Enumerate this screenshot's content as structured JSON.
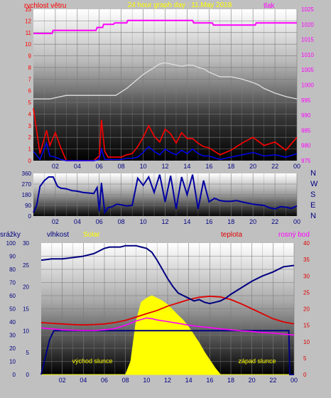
{
  "header": {
    "title": "24 hour graph day : 11.May 2018"
  },
  "colors": {
    "background": "#c0c0c0",
    "wind": "#ff0000",
    "gust": "#0000ff",
    "pressure": "#ff00ff",
    "temp_white": "#e0e0e0",
    "direction": "#0000a0",
    "humidity": "#000080",
    "solar": "#ffff00",
    "temperature": "#e00000",
    "dewpoint": "#ff00ff",
    "rain": "#000080"
  },
  "chart_data": [
    {
      "type": "line",
      "panel": "wind-pressure",
      "left_axis_label": "rychlost větru",
      "right_axis_label": "tlak",
      "x_ticks": [
        "02",
        "04",
        "06",
        "08",
        "10",
        "12",
        "14",
        "16",
        "18",
        "20",
        "22",
        "00"
      ],
      "ylim_left": [
        0,
        13
      ],
      "left_ticks": [
        "0",
        "1",
        "2",
        "3",
        "4",
        "5",
        "6",
        "7",
        "8",
        "9",
        "10",
        "11",
        "12",
        "13"
      ],
      "ylim_right": [
        975,
        1025
      ],
      "right_ticks": [
        "975",
        "980",
        "985",
        "990",
        "995",
        "1000",
        "1005",
        "1010",
        "1015",
        "1020",
        "1025"
      ],
      "series": [
        {
          "axis": "right",
          "x": [
            0,
            1.7,
            1.8,
            5.7,
            5.8,
            6.3,
            6.4,
            7.3,
            7.4,
            8.5,
            8.6,
            14.5,
            14.6,
            16.3,
            16.4,
            20.2,
            20.3,
            24
          ],
          "y": [
            1017,
            1017,
            1018,
            1018,
            1019,
            1019,
            1020,
            1020,
            1020.5,
            1020.5,
            1021.3,
            1021.3,
            1020.5,
            1020.5,
            1019.8,
            1019.8,
            1020.5,
            1020.5
          ]
        },
        {
          "axis": "left",
          "x": [
            0,
            1.5,
            3.0,
            5.0,
            6.5,
            7.5,
            8.0,
            8.5,
            9.0,
            9.5,
            10.0,
            10.5,
            11.0,
            11.5,
            12.0,
            12.5,
            13.0,
            13.5,
            14.0,
            14.5,
            15.0,
            15.5,
            16.0,
            16.5,
            17.0,
            18.0,
            19.0,
            20.0,
            20.5,
            21.0,
            22.0,
            23.0,
            24.0
          ],
          "y": [
            5.3,
            5.3,
            5.6,
            5.6,
            5.6,
            5.6,
            5.9,
            6.2,
            6.6,
            7.0,
            7.4,
            7.7,
            8.0,
            8.3,
            8.4,
            8.3,
            8.2,
            8.1,
            8.2,
            8.2,
            8.0,
            7.9,
            7.6,
            7.4,
            7.2,
            7.2,
            7.0,
            6.7,
            6.5,
            6.2,
            5.8,
            5.5,
            5.3
          ]
        },
        {
          "axis": "left",
          "x": [
            0,
            0.6,
            1.2,
            1.5,
            2.0,
            2.5,
            3.0,
            5.5,
            6.0,
            6.2,
            6.5,
            6.8,
            7.5,
            8.0,
            8.5,
            9.0,
            9.5,
            10.0,
            10.5,
            11.0,
            11.5,
            12.0,
            12.5,
            13.0,
            13.5,
            14.0,
            14.5,
            15.0,
            15.5,
            16.0,
            17.0,
            18.0,
            19.0,
            20.0,
            21.0,
            22.0,
            23.0,
            24.0
          ],
          "y": [
            4.5,
            0.6,
            2.6,
            1.3,
            2.4,
            1.1,
            0,
            0,
            0.4,
            3.5,
            0.8,
            0.3,
            0.3,
            0.3,
            0.5,
            0.6,
            1.2,
            2.0,
            3.0,
            2.1,
            1.6,
            2.7,
            2.3,
            1.5,
            2.4,
            1.9,
            1.9,
            1.5,
            1.2,
            1.1,
            0.5,
            0.9,
            1.5,
            2.0,
            1.3,
            1.6,
            0.9,
            2.0
          ]
        },
        {
          "axis": "left",
          "x": [
            0,
            0.6,
            1.2,
            1.5,
            2.0,
            2.5,
            3.0,
            5.5,
            6.0,
            6.2,
            6.5,
            6.8,
            7.5,
            8.0,
            8.5,
            9.0,
            9.5,
            10.0,
            10.5,
            11.0,
            11.5,
            12.0,
            12.5,
            13.0,
            13.5,
            14.0,
            14.5,
            15.0,
            15.5,
            16.0,
            17.0,
            18.0,
            19.0,
            20.0,
            21.0,
            22.0,
            23.0,
            24.0
          ],
          "y": [
            0.8,
            0.1,
            1.5,
            0.4,
            0.3,
            0.1,
            0,
            0,
            0.1,
            1.0,
            0.1,
            0.1,
            0.1,
            0.1,
            0.2,
            0.2,
            0.3,
            0.7,
            1.2,
            0.8,
            0.5,
            1.0,
            0.7,
            0.5,
            0.9,
            0.6,
            1.0,
            0.6,
            0.4,
            0.4,
            0.1,
            0.3,
            0.5,
            0.7,
            0.4,
            0.5,
            0.3,
            0.6
          ]
        }
      ]
    },
    {
      "type": "line",
      "panel": "wind-direction",
      "x_ticks": [
        "02",
        "04",
        "06",
        "08",
        "10",
        "12",
        "14",
        "16",
        "18",
        "20",
        "22",
        "00"
      ],
      "ylim": [
        0,
        360
      ],
      "left_ticks": [
        "0",
        "45",
        "90",
        "135",
        "180",
        "225",
        "270",
        "315",
        "360"
      ],
      "right_labels": [
        "N",
        "W",
        "S",
        "E",
        "N"
      ],
      "series": [
        {
          "x": [
            0,
            0.3,
            0.6,
            1.0,
            1.4,
            1.8,
            2.2,
            2.5,
            3.0,
            3.5,
            4.0,
            4.5,
            5.0,
            5.5,
            5.8,
            6.0,
            6.2,
            6.5,
            6.8,
            7.2,
            7.6,
            8.0,
            8.5,
            9.0,
            9.5,
            10.0,
            10.5,
            11.0,
            11.5,
            12.0,
            12.5,
            13.0,
            13.5,
            14.0,
            14.5,
            15.0,
            15.5,
            16.0,
            16.5,
            17.0,
            17.5,
            18.0,
            18.5,
            19.0,
            19.5,
            20.0,
            20.5,
            21.0,
            21.5,
            22.0,
            22.5,
            23.0,
            23.5,
            24.0
          ],
          "y": [
            30,
            90,
            250,
            300,
            330,
            330,
            250,
            235,
            230,
            215,
            210,
            200,
            195,
            190,
            240,
            40,
            280,
            30,
            70,
            80,
            100,
            95,
            85,
            90,
            320,
            260,
            330,
            200,
            350,
            120,
            340,
            60,
            330,
            180,
            350,
            60,
            300,
            120,
            150,
            130,
            125,
            125,
            130,
            120,
            110,
            100,
            95,
            90,
            70,
            60,
            80,
            75,
            65,
            85
          ]
        }
      ]
    },
    {
      "type": "line",
      "panel": "humidity-temperature",
      "labels": {
        "rain": "srážky",
        "humidity": "vlhkost",
        "solar": "Solar",
        "temperature": "teplota",
        "dewpoint": "rosný bod"
      },
      "x_ticks": [
        "02",
        "04",
        "06",
        "08",
        "10",
        "12",
        "14",
        "16",
        "18",
        "20",
        "22",
        "00"
      ],
      "humidity_ylim": [
        0,
        100
      ],
      "humidity_ticks": [
        "0",
        "10",
        "20",
        "30",
        "40",
        "50",
        "60",
        "70",
        "80",
        "90",
        "100"
      ],
      "rain_ylim": [
        0,
        30
      ],
      "rain_ticks": [
        "0",
        "5",
        "10",
        "15",
        "20",
        "25",
        "30"
      ],
      "temp_ylim": [
        0,
        40
      ],
      "temp_ticks": [
        "0",
        "5",
        "10",
        "15",
        "20",
        "25",
        "30",
        "35",
        "40"
      ],
      "sunrise_label": "východ slunce",
      "sunset_label": "západ slunce",
      "series": [
        {
          "axis": "humidity",
          "x": [
            0,
            1,
            2,
            3,
            4,
            5,
            5.5,
            6,
            6.5,
            7,
            7.5,
            8,
            8.5,
            9,
            9.5,
            10,
            10.5,
            11,
            11.5,
            12,
            12.5,
            13,
            13.5,
            14,
            14.5,
            15,
            15.5,
            16,
            16.5,
            17,
            17.5,
            18,
            19,
            20,
            21,
            22,
            23,
            24
          ],
          "y": [
            87,
            88,
            88,
            89,
            90,
            92,
            94,
            96,
            97,
            97,
            97,
            98,
            98,
            98,
            97,
            96,
            93,
            87,
            80,
            73,
            67,
            62,
            60,
            58,
            56,
            57,
            55,
            54,
            55,
            56,
            58,
            61,
            66,
            71,
            75,
            78,
            82,
            83
          ]
        },
        {
          "axis": "temp",
          "x": [
            0,
            1,
            2,
            3,
            4,
            5,
            6,
            7,
            8,
            9,
            10,
            11,
            12,
            13,
            14,
            15,
            16,
            17,
            18,
            19,
            20,
            21,
            22,
            23,
            24
          ],
          "y": [
            15.8,
            15.6,
            15.4,
            15.2,
            15.1,
            15.2,
            15.4,
            15.8,
            16.5,
            17.5,
            18.5,
            19.5,
            20.8,
            21.8,
            22.8,
            23.5,
            23.8,
            23.6,
            22.8,
            21.5,
            20,
            18.5,
            17,
            16,
            15.4
          ]
        },
        {
          "axis": "temp",
          "x": [
            0,
            1,
            2,
            3,
            4,
            5,
            6,
            7,
            8,
            9,
            10,
            10.5,
            11,
            12,
            13,
            14,
            15,
            16,
            17,
            18,
            19,
            20,
            21,
            22,
            23,
            24
          ],
          "y": [
            14.2,
            13.9,
            13.6,
            13.5,
            13.4,
            13.4,
            13.6,
            14.0,
            15.0,
            16.3,
            17.2,
            17.0,
            16.6,
            16.1,
            15.6,
            15.0,
            14.6,
            14.3,
            13.9,
            13.6,
            13.3,
            13.1,
            12.8,
            12.6,
            12.3,
            12.0
          ]
        },
        {
          "axis": "humidity",
          "x": [
            0,
            8.0,
            8.5,
            9.0,
            9.5,
            10.0,
            10.5,
            11.0,
            11.5,
            12.0,
            12.5,
            13.0,
            13.5,
            14.0,
            14.5,
            15.0,
            15.5,
            16.0,
            16.5,
            17.0,
            24.0
          ],
          "y": [
            0,
            0,
            10,
            40,
            55,
            58,
            60,
            58,
            56,
            53,
            49,
            45,
            41,
            36,
            30,
            24,
            17,
            11,
            5,
            0,
            0
          ]
        },
        {
          "axis": "rain",
          "x": [
            0,
            0.4,
            0.8,
            1.2,
            23.5,
            23.6,
            24
          ],
          "y": [
            0,
            4,
            8,
            10,
            10,
            0,
            0
          ]
        }
      ]
    }
  ]
}
